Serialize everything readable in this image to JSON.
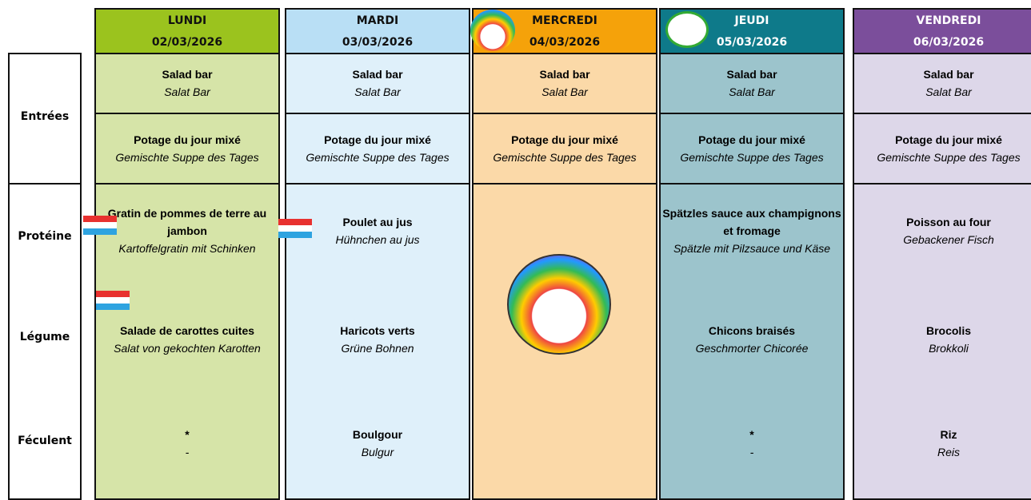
{
  "row_labels": [
    "Entrées",
    "Protéine",
    "Légume",
    "Féculent"
  ],
  "days": [
    {
      "name": "LUNDI",
      "date": "02/03/2026",
      "entree1": {
        "fr": "Salad bar",
        "de": "Salat Bar"
      },
      "entree2": {
        "fr": "Potage du jour mixé",
        "de": "Gemischte Suppe des Tages"
      },
      "proteine": {
        "fr": "Gratin de pommes de terre au jambon",
        "de": "Kartoffelgratin mit Schinken"
      },
      "legume": {
        "fr": "Salade de carottes cuites",
        "de": "Salat von gekochten Karotten"
      },
      "feculent": {
        "fr": "*",
        "de": "-"
      }
    },
    {
      "name": "MARDI",
      "date": "03/03/2026",
      "entree1": {
        "fr": "Salad bar",
        "de": "Salat Bar"
      },
      "entree2": {
        "fr": "Potage du jour mixé",
        "de": "Gemischte Suppe des Tages"
      },
      "proteine": {
        "fr": "Poulet au jus",
        "de": "Hühnchen au jus"
      },
      "legume": {
        "fr": "Haricots verts",
        "de": "Grüne Bohnen"
      },
      "feculent": {
        "fr": "Boulgour",
        "de": "Bulgur"
      }
    },
    {
      "name": "MERCREDI",
      "date": "04/03/2026",
      "entree1": {
        "fr": "Salad bar",
        "de": "Salat Bar"
      },
      "entree2": {
        "fr": "Potage du jour mixé",
        "de": "Gemischte Suppe des Tages"
      }
    },
    {
      "name": "JEUDI",
      "date": "05/03/2026",
      "entree1": {
        "fr": "Salad bar",
        "de": "Salat Bar"
      },
      "entree2": {
        "fr": "Potage du jour mixé",
        "de": "Gemischte Suppe des Tages"
      },
      "proteine": {
        "fr": "Spätzles sauce aux champignons et fromage",
        "de": "Spätzle mit Pilzsauce und Käse"
      },
      "legume": {
        "fr": "Chicons braisés",
        "de": "Geschmorter Chicorée"
      },
      "feculent": {
        "fr": "*",
        "de": "-"
      }
    },
    {
      "name": "VENDREDI",
      "date": "06/03/2026",
      "entree1": {
        "fr": "Salad bar",
        "de": "Salat Bar"
      },
      "entree2": {
        "fr": "Potage du jour mixé",
        "de": "Gemischte Suppe des Tages"
      },
      "proteine": {
        "fr": "Poisson au four",
        "de": "Gebackener Fisch"
      },
      "legume": {
        "fr": "Brocolis",
        "de": "Brokkoli"
      },
      "feculent": {
        "fr": "Riz",
        "de": "Reis"
      }
    }
  ]
}
